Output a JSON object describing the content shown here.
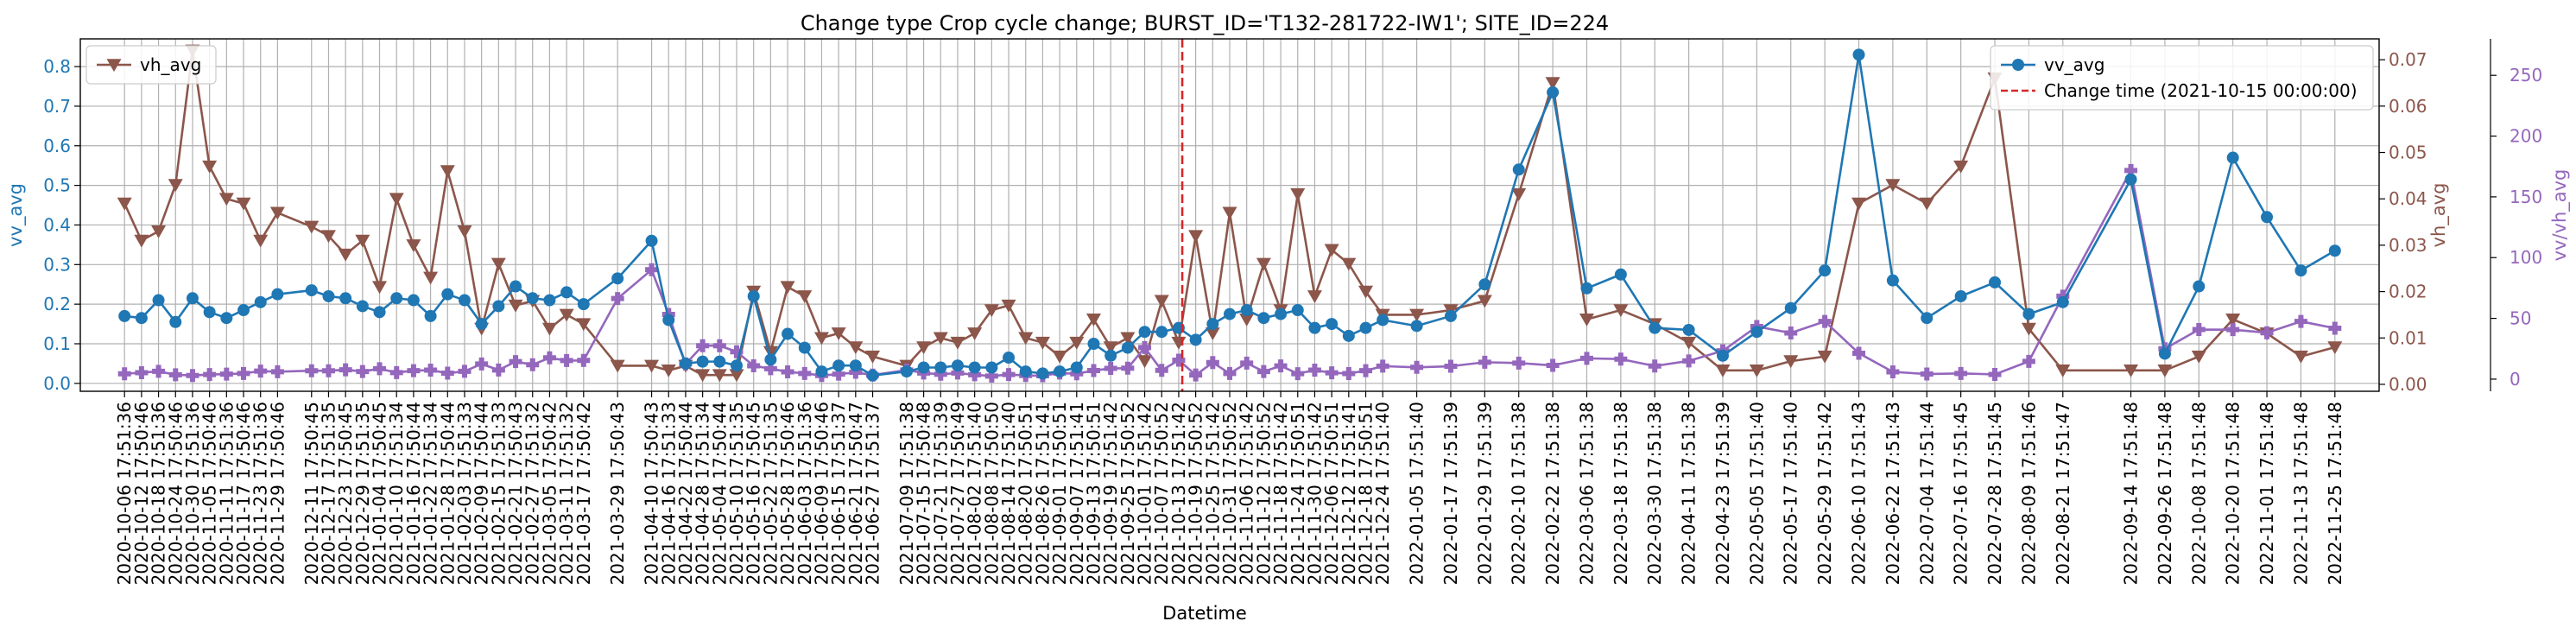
{
  "chart_data": {
    "type": "line",
    "title": "Change type Crop cycle change; BURST_ID='T132-281722-IW1'; SITE_ID=224",
    "xlabel": "Datetime",
    "ylabel_left": "vv_avg",
    "ylabel_right1": "vh_avg",
    "ylabel_right2": "vv/vh_avg",
    "ylim_left": [
      -0.02,
      0.87
    ],
    "ylim_right1": [
      -0.0015,
      0.0745
    ],
    "ylim_right2": [
      -10,
      280
    ],
    "yticks_left": [
      "0.0",
      "0.1",
      "0.2",
      "0.3",
      "0.4",
      "0.5",
      "0.6",
      "0.7",
      "0.8"
    ],
    "yticks_right1": [
      "0.00",
      "0.01",
      "0.02",
      "0.03",
      "0.04",
      "0.05",
      "0.06",
      "0.07"
    ],
    "yticks_right2": [
      "0",
      "50",
      "100",
      "150",
      "200",
      "250"
    ],
    "grid": true,
    "legend_left_position": "upper-left",
    "legend_right_position": "upper-right",
    "change_time": "2021-10-15",
    "x": [
      "2020-10-06 17:51:36",
      "2020-10-12 17:50:46",
      "2020-10-18 17:51:36",
      "2020-10-24 17:50:46",
      "2020-10-30 17:51:36",
      "2020-11-05 17:50:46",
      "2020-11-11 17:51:36",
      "2020-11-17 17:50:46",
      "2020-11-23 17:51:36",
      "2020-11-29 17:50:46",
      "2020-12-11 17:50:45",
      "2020-12-17 17:51:35",
      "2020-12-23 17:50:45",
      "2020-12-29 17:51:35",
      "2021-01-04 17:50:45",
      "2021-01-10 17:51:34",
      "2021-01-16 17:50:44",
      "2021-01-22 17:51:34",
      "2021-01-28 17:50:44",
      "2021-02-03 17:51:33",
      "2021-02-09 17:50:44",
      "2021-02-15 17:51:33",
      "2021-02-21 17:50:43",
      "2021-02-27 17:51:32",
      "2021-03-05 17:50:42",
      "2021-03-11 17:51:32",
      "2021-03-17 17:50:42",
      "2021-03-29 17:50:43",
      "2021-04-10 17:50:43",
      "2021-04-16 17:51:33",
      "2021-04-22 17:50:44",
      "2021-04-28 17:51:34",
      "2021-05-04 17:50:44",
      "2021-05-10 17:51:35",
      "2021-05-16 17:50:45",
      "2021-05-22 17:51:35",
      "2021-05-28 17:50:46",
      "2021-06-03 17:51:36",
      "2021-06-09 17:50:46",
      "2021-06-15 17:51:37",
      "2021-06-21 17:50:47",
      "2021-06-27 17:51:37",
      "2021-07-09 17:51:38",
      "2021-07-15 17:50:48",
      "2021-07-21 17:51:39",
      "2021-07-27 17:50:49",
      "2021-08-02 17:51:40",
      "2021-08-08 17:50:50",
      "2021-08-14 17:51:40",
      "2021-08-20 17:50:51",
      "2021-08-26 17:51:41",
      "2021-09-01 17:50:51",
      "2021-09-07 17:51:41",
      "2021-09-13 17:50:51",
      "2021-09-19 17:51:42",
      "2021-09-25 17:50:52",
      "2021-10-01 17:51:42",
      "2021-10-07 17:50:52",
      "2021-10-13 17:51:42",
      "2021-10-19 17:50:52",
      "2021-10-25 17:51:42",
      "2021-10-31 17:50:52",
      "2021-11-06 17:51:42",
      "2021-11-12 17:50:52",
      "2021-11-18 17:51:42",
      "2021-11-24 17:50:51",
      "2021-11-30 17:51:42",
      "2021-12-06 17:50:51",
      "2021-12-12 17:51:41",
      "2021-12-18 17:50:51",
      "2021-12-24 17:51:40",
      "2022-01-05 17:51:40",
      "2022-01-17 17:51:39",
      "2022-01-29 17:51:39",
      "2022-02-10 17:51:38",
      "2022-02-22 17:51:38",
      "2022-03-06 17:51:38",
      "2022-03-18 17:51:38",
      "2022-03-30 17:51:38",
      "2022-04-11 17:51:38",
      "2022-04-23 17:51:39",
      "2022-05-05 17:51:40",
      "2022-05-17 17:51:40",
      "2022-05-29 17:51:42",
      "2022-06-10 17:51:43",
      "2022-06-22 17:51:43",
      "2022-07-04 17:51:44",
      "2022-07-16 17:51:45",
      "2022-07-28 17:51:45",
      "2022-08-09 17:51:46",
      "2022-08-21 17:51:47",
      "2022-09-14 17:51:48",
      "2022-09-26 17:51:48",
      "2022-10-08 17:51:48",
      "2022-10-20 17:51:48",
      "2022-11-01 17:51:48",
      "2022-11-13 17:51:48",
      "2022-11-25 17:51:48"
    ],
    "series": [
      {
        "name": "vv_avg",
        "axis": "left",
        "color": "#1f77b4",
        "marker": "circle",
        "values": [
          0.17,
          0.165,
          0.21,
          0.155,
          0.215,
          0.18,
          0.165,
          0.185,
          0.205,
          0.225,
          0.235,
          0.22,
          0.215,
          0.195,
          0.18,
          0.215,
          0.21,
          0.17,
          0.225,
          0.21,
          0.15,
          0.195,
          0.245,
          0.215,
          0.21,
          0.23,
          0.2,
          0.265,
          0.36,
          0.16,
          0.05,
          0.055,
          0.055,
          0.045,
          0.22,
          0.06,
          0.125,
          0.09,
          0.03,
          0.045,
          0.045,
          0.02,
          0.03,
          0.04,
          0.04,
          0.045,
          0.04,
          0.04,
          0.065,
          0.03,
          0.025,
          0.03,
          0.04,
          0.1,
          0.07,
          0.09,
          0.13,
          0.13,
          0.14,
          0.11,
          0.15,
          0.175,
          0.185,
          0.165,
          0.175,
          0.185,
          0.14,
          0.15,
          0.12,
          0.14,
          0.16,
          0.145,
          0.17,
          0.25,
          0.54,
          0.735,
          0.24,
          0.275,
          0.14,
          0.135,
          0.07,
          0.13,
          0.19,
          0.285,
          0.83,
          0.26,
          0.165,
          0.22,
          0.255,
          0.175,
          0.205,
          0.515,
          0.075,
          0.245,
          0.57,
          0.42,
          0.285,
          0.335
        ]
      },
      {
        "name": "vh_avg",
        "axis": "right1",
        "color": "#8c564b",
        "marker": "triangle-down",
        "values": [
          0.039,
          0.031,
          0.033,
          0.043,
          0.072,
          0.047,
          0.04,
          0.039,
          0.031,
          0.037,
          0.034,
          0.032,
          0.028,
          0.031,
          0.021,
          0.04,
          0.03,
          0.023,
          0.046,
          0.033,
          0.012,
          0.026,
          0.017,
          0.018,
          0.012,
          0.015,
          0.013,
          0.004,
          0.004,
          0.003,
          0.004,
          0.002,
          0.002,
          0.002,
          0.02,
          0.007,
          0.021,
          0.019,
          0.01,
          0.011,
          0.008,
          0.006,
          0.004,
          0.008,
          0.01,
          0.009,
          0.011,
          0.016,
          0.017,
          0.01,
          0.009,
          0.006,
          0.009,
          0.014,
          0.008,
          0.01,
          0.005,
          0.018,
          0.009,
          0.032,
          0.011,
          0.037,
          0.014,
          0.026,
          0.016,
          0.041,
          0.019,
          0.029,
          0.026,
          0.02,
          0.015,
          0.015,
          0.016,
          0.018,
          0.041,
          0.065,
          0.014,
          0.016,
          0.013,
          0.009,
          0.003,
          0.003,
          0.005,
          0.006,
          0.039,
          0.043,
          0.039,
          0.047,
          0.066,
          0.012,
          0.003,
          0.003,
          0.003,
          0.006,
          0.014,
          0.011,
          0.006,
          0.008
        ]
      },
      {
        "name": "vv/vh_avg",
        "axis": "right2",
        "color": "#9467bd",
        "marker": "plus",
        "values": [
          4.4,
          5.3,
          6.4,
          3.6,
          3.0,
          3.8,
          4.1,
          4.7,
          6.6,
          6.1,
          6.9,
          6.9,
          7.7,
          6.3,
          8.6,
          5.4,
          7.0,
          7.4,
          4.9,
          6.4,
          12.5,
          7.5,
          14.4,
          11.9,
          17.5,
          15.3,
          15.4,
          66.3,
          90.0,
          53.3,
          12.5,
          27.5,
          27.5,
          22.5,
          11.0,
          8.6,
          6.0,
          4.7,
          3.0,
          4.1,
          5.6,
          3.3,
          7.5,
          5.0,
          4.0,
          5.0,
          3.6,
          2.5,
          3.8,
          3.0,
          2.8,
          5.0,
          4.4,
          7.1,
          8.8,
          9.0,
          26.0,
          7.2,
          15.6,
          3.4,
          13.6,
          4.7,
          13.2,
          6.3,
          10.9,
          4.5,
          7.4,
          5.2,
          4.6,
          7.0,
          10.7,
          9.7,
          10.6,
          13.9,
          13.2,
          11.3,
          17.1,
          16.5,
          10.8,
          15.0,
          23.3,
          43.3,
          38.0,
          47.5,
          21.3,
          6.0,
          4.2,
          4.7,
          3.9,
          14.6,
          68.3,
          171.7,
          25.0,
          40.8,
          40.7,
          38.2,
          47.5,
          41.9
        ]
      }
    ],
    "legend_left": [
      {
        "label": "vh_avg",
        "color": "#8c564b",
        "marker": "triangle-down"
      }
    ],
    "legend_right": [
      {
        "label": "vv_avg",
        "color": "#1f77b4",
        "marker": "circle"
      },
      {
        "label": "Change time (2021-10-15 00:00:00)",
        "color": "#d62728",
        "style": "dashed"
      }
    ]
  }
}
